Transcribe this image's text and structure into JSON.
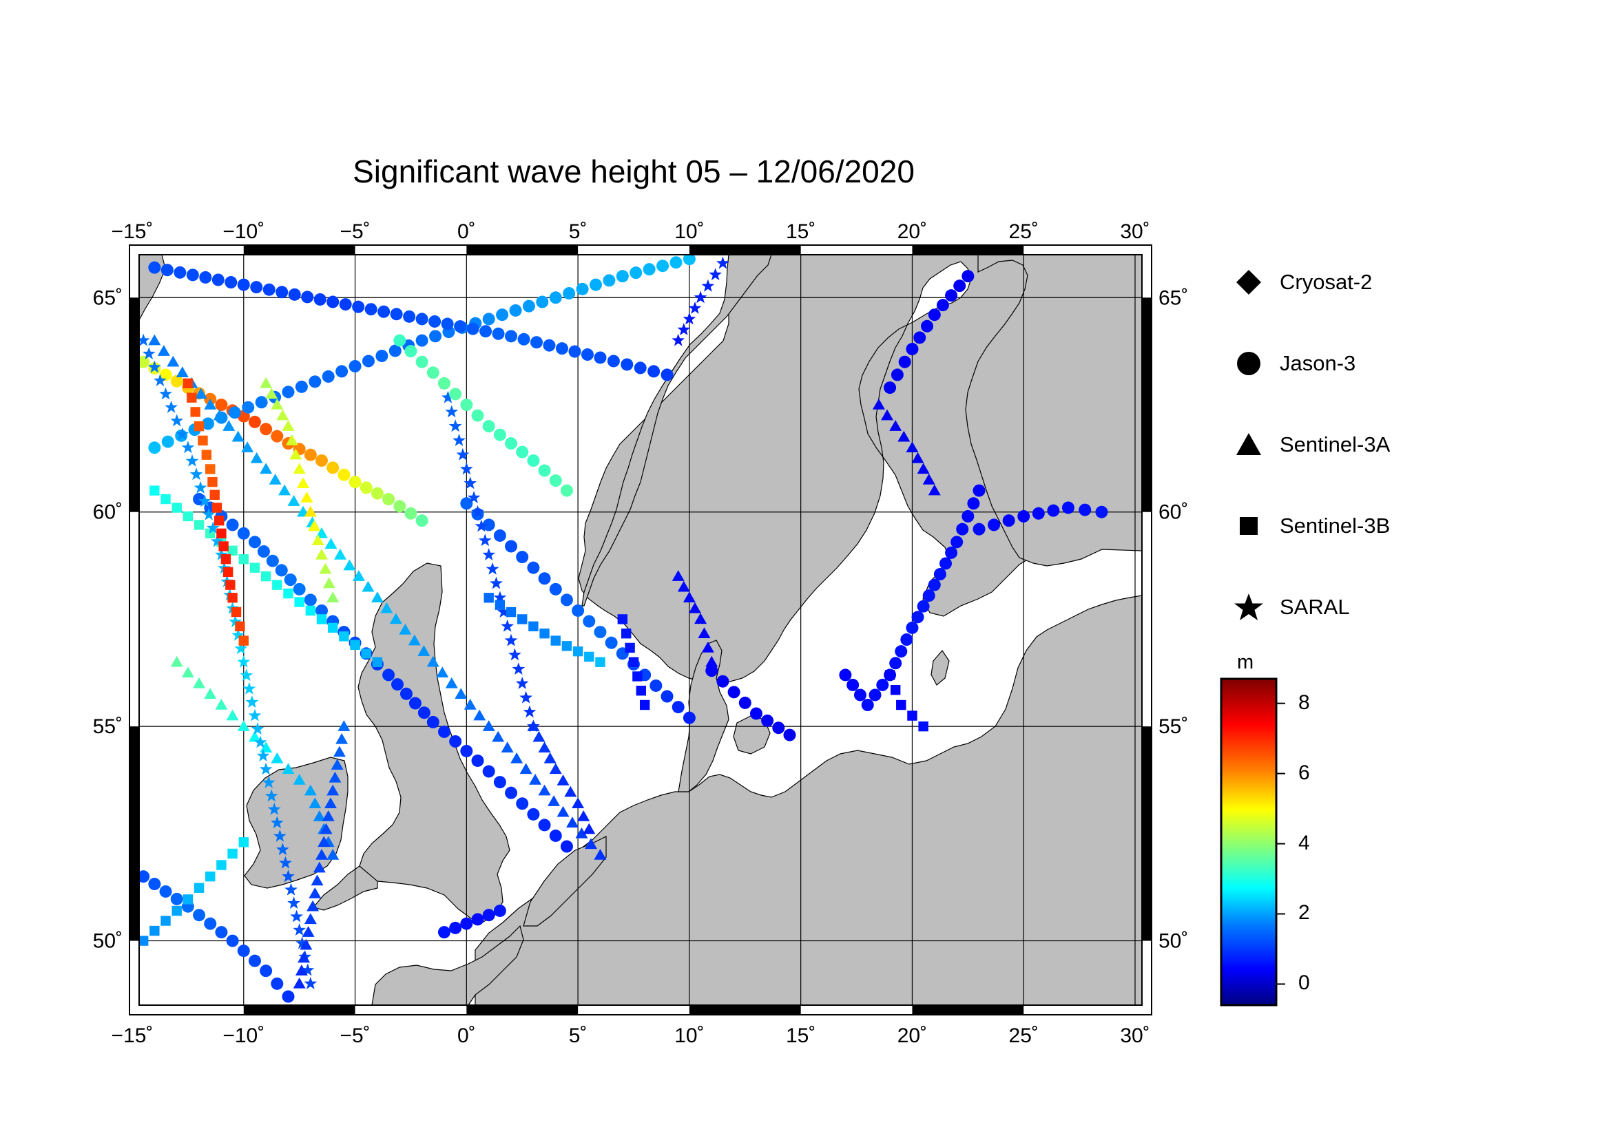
{
  "title": "Significant wave height 05 – 12/06/2020",
  "map": {
    "lon_range": [
      -15,
      30
    ],
    "lat_range": [
      48.5,
      66
    ],
    "lon_ticks": [
      "−15˚",
      "−10˚",
      "−5˚",
      "0˚",
      "5˚",
      "10˚",
      "15˚",
      "20˚",
      "25˚",
      "30˚"
    ],
    "lat_ticks": [
      "50˚",
      "55˚",
      "60˚",
      "65˚"
    ],
    "land_color": "#bebebe",
    "sea_color": "#ffffff",
    "grid": true
  },
  "legend": {
    "placement": "right",
    "items": [
      {
        "name": "Cryosat-2",
        "marker": "diamond"
      },
      {
        "name": "Jason-3",
        "marker": "circle"
      },
      {
        "name": "Sentinel-3A",
        "marker": "triangle"
      },
      {
        "name": "Sentinel-3B",
        "marker": "square"
      },
      {
        "name": "SARAL",
        "marker": "star"
      }
    ]
  },
  "colorbar": {
    "unit": "m",
    "range": [
      -0.6,
      8.7
    ],
    "ticks": [
      "8",
      "6",
      "4",
      "2",
      "0"
    ],
    "tick_values": [
      8,
      6,
      4,
      2,
      0
    ],
    "colormap": [
      "#00007f",
      "#0000ff",
      "#007fff",
      "#00ffff",
      "#7fff7f",
      "#ffff00",
      "#ff7f00",
      "#ff0000",
      "#7f0000"
    ]
  },
  "chart_data": {
    "type": "scatter",
    "title": "Significant wave height 05 – 12/06/2020",
    "x_label": "",
    "y_label": "",
    "x_range": [
      -15,
      30
    ],
    "y_range": [
      48.5,
      66
    ],
    "color_variable": "significant wave height (m)",
    "tracks": [
      {
        "satellite": "Jason-3",
        "marker": "circle",
        "points": [
          [
            -14.5,
            63.5,
            4.5
          ],
          [
            -12.5,
            62.9,
            5.5
          ],
          [
            -11,
            62.5,
            6.5
          ],
          [
            -9.5,
            62.1,
            6.7
          ],
          [
            -8,
            61.6,
            6.2
          ],
          [
            -6.5,
            61.2,
            5.8
          ],
          [
            -5,
            60.7,
            4.8
          ],
          [
            -3.5,
            60.3,
            4.2
          ],
          [
            -2,
            59.8,
            3.5
          ]
        ]
      },
      {
        "satellite": "Jason-3",
        "marker": "circle",
        "points": [
          [
            -14,
            61.5,
            2.2
          ],
          [
            -11,
            62.2,
            1.8
          ],
          [
            -8,
            62.8,
            1.5
          ],
          [
            -5,
            63.4,
            1.4
          ],
          [
            -2,
            64,
            1.5
          ],
          [
            1,
            64.5,
            1.8
          ],
          [
            4,
            65,
            2
          ],
          [
            7,
            65.5,
            2.1
          ],
          [
            10,
            65.9,
            2.2
          ]
        ]
      },
      {
        "satellite": "Jason-3",
        "marker": "circle",
        "points": [
          [
            -14,
            65.7,
            1.2
          ],
          [
            -10,
            65.3,
            1.1
          ],
          [
            -6,
            64.9,
            1
          ],
          [
            -2,
            64.5,
            1.2
          ],
          [
            2,
            64.1,
            1.4
          ],
          [
            6,
            63.6,
            1.2
          ],
          [
            9,
            63.2,
            1
          ]
        ]
      },
      {
        "satellite": "Jason-3",
        "marker": "circle",
        "points": [
          [
            -12,
            60.3,
            1.3
          ],
          [
            -9.5,
            59.3,
            1.4
          ],
          [
            -7.5,
            58.2,
            1.6
          ],
          [
            -5.5,
            57.2,
            1.2
          ],
          [
            -3.5,
            56.2,
            0.9
          ],
          [
            -1.5,
            55.1,
            0.8
          ],
          [
            0.5,
            54.2,
            0.8
          ],
          [
            2.5,
            53.2,
            0.9
          ],
          [
            4.5,
            52.2,
            0.7
          ]
        ]
      },
      {
        "satellite": "Jason-3",
        "marker": "circle",
        "points": [
          [
            -14.5,
            51.5,
            1.2
          ],
          [
            -12.5,
            50.8,
            1.5
          ],
          [
            -10.5,
            50,
            1.2
          ],
          [
            -9,
            49.3,
            1.1
          ],
          [
            -8,
            48.7,
            0.9
          ]
        ]
      },
      {
        "satellite": "Jason-3",
        "marker": "circle",
        "points": [
          [
            -1,
            50.2,
            0.6
          ],
          [
            0.5,
            50.5,
            0.5
          ],
          [
            1.5,
            50.7,
            0.6
          ]
        ]
      },
      {
        "satellite": "Jason-3",
        "marker": "circle",
        "points": [
          [
            0,
            60.2,
            1.4
          ],
          [
            2,
            59.2,
            1.2
          ],
          [
            4,
            58.2,
            1.3
          ],
          [
            6,
            57.2,
            1.5
          ],
          [
            8,
            56.2,
            1.1
          ],
          [
            10,
            55.2,
            0.7
          ]
        ]
      },
      {
        "satellite": "Jason-3",
        "marker": "circle",
        "points": [
          [
            17,
            56.2,
            0.4
          ],
          [
            18,
            55.5,
            0.5
          ],
          [
            19,
            56.2,
            0.5
          ],
          [
            20,
            57.3,
            0.6
          ],
          [
            21,
            58.3,
            0.6
          ],
          [
            22,
            59.3,
            0.5
          ],
          [
            23,
            60.5,
            0.4
          ]
        ]
      },
      {
        "satellite": "Jason-3",
        "marker": "circle",
        "points": [
          [
            19,
            62.9,
            0.3
          ],
          [
            20,
            63.8,
            0.4
          ],
          [
            21,
            64.6,
            0.4
          ],
          [
            22.5,
            65.5,
            0.3
          ]
        ]
      },
      {
        "satellite": "Jason-3",
        "marker": "circle",
        "points": [
          [
            23,
            59.6,
            0.5
          ],
          [
            25,
            59.9,
            0.4
          ],
          [
            27,
            60.1,
            0.5
          ],
          [
            28.5,
            60,
            0.6
          ]
        ]
      },
      {
        "satellite": "Jason-3",
        "marker": "circle",
        "points": [
          [
            11,
            56.3,
            0.4
          ],
          [
            12,
            55.8,
            0.3
          ],
          [
            13,
            55.3,
            0.4
          ],
          [
            14.5,
            54.8,
            0.3
          ]
        ]
      },
      {
        "satellite": "Sentinel-3A",
        "marker": "triangle",
        "points": [
          [
            -14,
            64,
            1.6
          ],
          [
            -11.5,
            62.5,
            1.8
          ],
          [
            -9,
            61,
            2
          ],
          [
            -6.5,
            59.5,
            2.5
          ],
          [
            -4,
            58,
            2.2
          ],
          [
            -1.5,
            56.5,
            1.8
          ],
          [
            1,
            55,
            1.4
          ],
          [
            3.5,
            53.5,
            1.2
          ],
          [
            6,
            52,
            0.9
          ]
        ]
      },
      {
        "satellite": "Sentinel-3A",
        "marker": "triangle",
        "points": [
          [
            -13,
            56.5,
            3.5
          ],
          [
            -11,
            55.5,
            3.2
          ],
          [
            -9,
            54.5,
            2.6
          ],
          [
            -7,
            53.5,
            2
          ],
          [
            -6,
            52,
            1.4
          ]
        ]
      },
      {
        "satellite": "Sentinel-3A",
        "marker": "triangle",
        "points": [
          [
            3,
            55,
            1
          ],
          [
            4,
            54,
            0.9
          ],
          [
            5,
            53.2,
            0.8
          ],
          [
            5.5,
            52.6,
            0.7
          ]
        ]
      },
      {
        "satellite": "Sentinel-3A",
        "marker": "triangle",
        "points": [
          [
            9.5,
            58.5,
            0.5
          ],
          [
            10.5,
            57.5,
            0.4
          ],
          [
            11,
            56.5,
            0.4
          ]
        ]
      },
      {
        "satellite": "Sentinel-3A",
        "marker": "triangle",
        "points": [
          [
            18.5,
            62.5,
            0.3
          ],
          [
            20,
            61.5,
            0.3
          ],
          [
            21,
            60.5,
            0.4
          ]
        ]
      },
      {
        "satellite": "Sentinel-3B",
        "marker": "square",
        "points": [
          [
            -14.5,
            50,
            1.8
          ],
          [
            -13,
            50.7,
            2
          ],
          [
            -11.5,
            51.5,
            2.3
          ],
          [
            -10,
            52.3,
            2.5
          ]
        ]
      },
      {
        "satellite": "Sentinel-3B",
        "marker": "square",
        "points": [
          [
            -14,
            60.5,
            2.8
          ],
          [
            -11.5,
            59.5,
            3.2
          ],
          [
            -9,
            58.5,
            3
          ],
          [
            -6.5,
            57.5,
            2.5
          ],
          [
            -4,
            56.5,
            2
          ]
        ]
      },
      {
        "satellite": "Sentinel-3B",
        "marker": "square",
        "points": [
          [
            7,
            57.5,
            0.6
          ],
          [
            7.5,
            56.5,
            0.6
          ],
          [
            8,
            55.5,
            0.5
          ]
        ]
      },
      {
        "satellite": "Sentinel-3B",
        "marker": "square",
        "points": [
          [
            19,
            56.2,
            0.4
          ],
          [
            19.5,
            55.5,
            0.4
          ],
          [
            20.5,
            55,
            0.5
          ]
        ]
      },
      {
        "satellite": "SARAL",
        "marker": "star",
        "points": [
          [
            -14.5,
            64,
            1.5
          ],
          [
            -12.5,
            61.5,
            1.8
          ],
          [
            -11,
            59,
            2.1
          ],
          [
            -10,
            56.5,
            2.4
          ],
          [
            -9,
            54,
            2
          ],
          [
            -8,
            51.5,
            1.3
          ],
          [
            -7,
            49,
            1.1
          ]
        ]
      },
      {
        "satellite": "SARAL",
        "marker": "star",
        "points": [
          [
            -1,
            63,
            1.5
          ],
          [
            0,
            61,
            1.2
          ],
          [
            1,
            59,
            1.1
          ],
          [
            2,
            57,
            1
          ],
          [
            3,
            55,
            0.9
          ]
        ]
      },
      {
        "satellite": "SARAL",
        "marker": "star",
        "points": [
          [
            9.5,
            64,
            0.6
          ],
          [
            10.5,
            65,
            0.7
          ],
          [
            11.5,
            65.8,
            0.8
          ]
        ]
      },
      {
        "satellite": "Sentinel-3A",
        "marker": "triangle",
        "points": [
          [
            -7.5,
            49,
            0.8
          ],
          [
            -7,
            50.5,
            1
          ],
          [
            -6.5,
            52,
            1.1
          ],
          [
            -6,
            53.5,
            1.2
          ],
          [
            -5.5,
            55,
            1.5
          ]
        ]
      },
      {
        "satellite": "Sentinel-3B",
        "marker": "square",
        "points": [
          [
            -12.5,
            63,
            6.8
          ],
          [
            -12,
            62,
            6.5
          ],
          [
            -11.5,
            61,
            6.4
          ],
          [
            -11,
            59.5,
            7.2
          ],
          [
            -10.5,
            58,
            7
          ],
          [
            -10,
            57,
            6.6
          ]
        ]
      },
      {
        "satellite": "Sentinel-3A",
        "marker": "triangle",
        "points": [
          [
            -9,
            63,
            4.2
          ],
          [
            -8,
            62,
            4.5
          ],
          [
            -7.5,
            61,
            4.8
          ],
          [
            -7,
            60,
            5.2
          ],
          [
            -6.5,
            59,
            4.5
          ],
          [
            -6,
            58,
            4
          ]
        ]
      },
      {
        "satellite": "Jason-3",
        "marker": "circle",
        "points": [
          [
            -3,
            64,
            3.2
          ],
          [
            -1,
            63,
            3.5
          ],
          [
            1,
            62,
            3.3
          ],
          [
            3,
            61.2,
            3.2
          ],
          [
            4.5,
            60.5,
            3.4
          ]
        ]
      },
      {
        "satellite": "Sentinel-3B",
        "marker": "square",
        "points": [
          [
            1,
            58,
            1.5
          ],
          [
            2.5,
            57.5,
            1.6
          ],
          [
            4,
            57,
            1.8
          ],
          [
            6,
            56.5,
            2.2
          ]
        ]
      }
    ]
  }
}
